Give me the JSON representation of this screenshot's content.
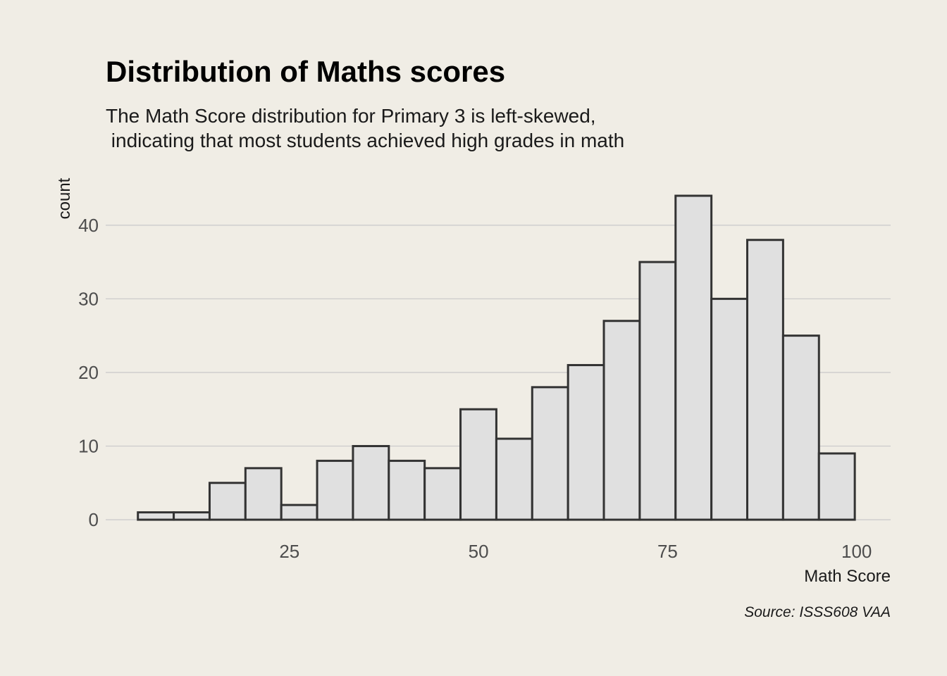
{
  "chart_data": {
    "type": "bar",
    "title": "Distribution of Maths scores",
    "subtitle_lines": [
      "The Math Score distribution for Primary 3 is left-skewed,",
      " indicating that most students achieved high grades in math"
    ],
    "xlabel": "Math Score",
    "ylabel": "count",
    "caption": "Source: ISSS608 VAA",
    "bin_start": 4.96,
    "bin_width": 4.74,
    "x": [
      7.33,
      12.07,
      16.81,
      21.55,
      26.29,
      31.03,
      35.77,
      40.51,
      45.25,
      49.99,
      54.73,
      59.47,
      64.21,
      68.95,
      73.69,
      78.43,
      83.17,
      87.91,
      92.65,
      97.39
    ],
    "values": [
      1,
      1,
      5,
      7,
      2,
      8,
      10,
      8,
      7,
      15,
      11,
      18,
      21,
      27,
      35,
      44,
      30,
      38,
      25,
      9
    ],
    "xlim": [
      0.7,
      104.5
    ],
    "ylim": [
      -2.1,
      46.2
    ],
    "x_ticks": [
      25,
      50,
      75,
      100
    ],
    "y_ticks": [
      0,
      10,
      20,
      30,
      40
    ],
    "grid": "horizontal major",
    "colors": {
      "background": "#f0ede5",
      "bar_fill": "#e0e0e0",
      "bar_outline": "#333333",
      "grid": "#cccccc"
    }
  }
}
